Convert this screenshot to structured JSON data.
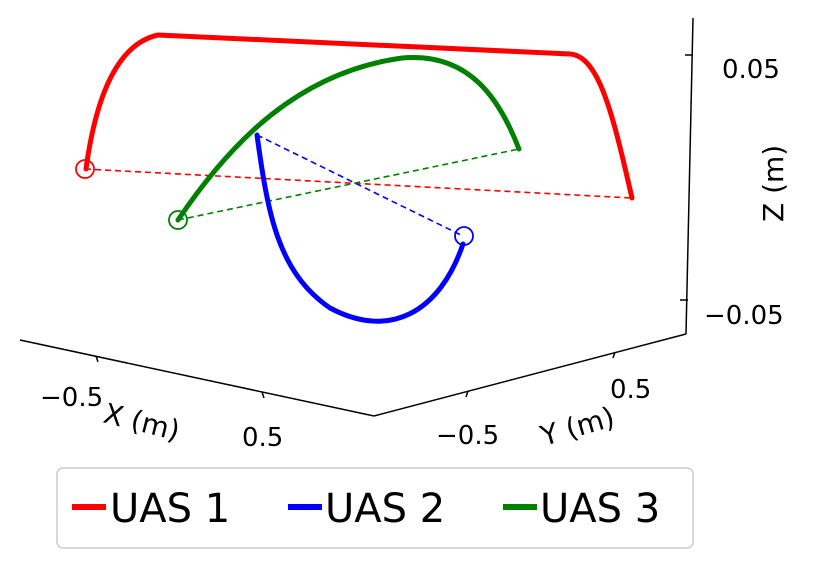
{
  "chart_data": {
    "type": "line",
    "projection": "3d",
    "xlabel": "X (m)",
    "ylabel": "Y (m)",
    "zlabel": "Z (m)",
    "x_ticks": [
      "−0.5",
      "0.5"
    ],
    "y_ticks": [
      "−0.5",
      "0.5"
    ],
    "z_ticks": [
      "0.05",
      "−0.05"
    ],
    "grid": false,
    "legend_position": "bottom",
    "series": [
      {
        "name": "UAS 1",
        "color": "#ff0000",
        "start_marker": "open-circle"
      },
      {
        "name": "UAS 2",
        "color": "#0000ff",
        "start_marker": "open-circle"
      },
      {
        "name": "UAS 3",
        "color": "#008000",
        "start_marker": "open-circle"
      }
    ]
  }
}
